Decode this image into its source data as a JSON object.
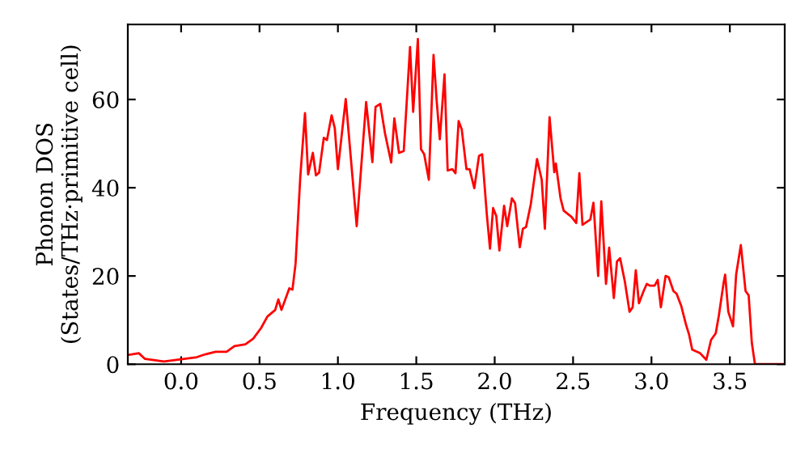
{
  "chart_data": {
    "type": "line",
    "xlabel": "Frequency (THz)",
    "ylabel": "Phonon DOS\n(States/THz·primitive cell)",
    "xlim": [
      -0.34,
      3.85
    ],
    "ylim": [
      0,
      77
    ],
    "xticks": [
      {
        "value": 0,
        "label": "0.0"
      },
      0.5,
      {
        "value": 1,
        "label": "1.0"
      },
      1.5,
      {
        "value": 2,
        "label": "2.0"
      },
      2.5,
      {
        "value": 3,
        "label": "3.0"
      },
      3.5
    ],
    "yticks": [
      0,
      20,
      40,
      60
    ],
    "grid": false,
    "legend": false,
    "series": [
      {
        "color": "#ff0000",
        "x": [
          -0.34,
          -0.27,
          -0.23,
          -0.11,
          0.0,
          0.1,
          0.15,
          0.22,
          0.29,
          0.34,
          0.41,
          0.46,
          0.51,
          0.55,
          0.6,
          0.62,
          0.64,
          0.69,
          0.71,
          0.73,
          0.76,
          0.79,
          0.81,
          0.84,
          0.86,
          0.88,
          0.91,
          0.93,
          0.96,
          0.98,
          1.0,
          1.05,
          1.12,
          1.18,
          1.22,
          1.24,
          1.27,
          1.3,
          1.34,
          1.36,
          1.39,
          1.42,
          1.46,
          1.48,
          1.51,
          1.53,
          1.55,
          1.58,
          1.61,
          1.63,
          1.65,
          1.68,
          1.7,
          1.73,
          1.75,
          1.77,
          1.79,
          1.82,
          1.84,
          1.87,
          1.9,
          1.92,
          1.95,
          1.97,
          1.99,
          2.01,
          2.03,
          2.06,
          2.08,
          2.11,
          2.13,
          2.16,
          2.18,
          2.2,
          2.23,
          2.27,
          2.3,
          2.32,
          2.35,
          2.38,
          2.39,
          2.42,
          2.44,
          2.49,
          2.52,
          2.54,
          2.56,
          2.61,
          2.63,
          2.66,
          2.68,
          2.71,
          2.73,
          2.76,
          2.78,
          2.8,
          2.83,
          2.86,
          2.88,
          2.9,
          2.92,
          2.95,
          2.97,
          2.99,
          3.02,
          3.04,
          3.06,
          3.09,
          3.11,
          3.14,
          3.16,
          3.19,
          3.22,
          3.24,
          3.26,
          3.31,
          3.35,
          3.38,
          3.41,
          3.43,
          3.46,
          3.47,
          3.49,
          3.52,
          3.54,
          3.57,
          3.6,
          3.62,
          3.64,
          3.66,
          3.85
        ],
        "values": [
          2.1,
          2.5,
          1.2,
          0.6,
          1.1,
          1.6,
          2.2,
          2.8,
          2.8,
          4.1,
          4.5,
          5.8,
          8.2,
          10.8,
          12.3,
          14.7,
          12.3,
          17.2,
          16.9,
          22.8,
          42.4,
          56.9,
          43.0,
          47.9,
          42.8,
          43.4,
          51.3,
          50.8,
          56.4,
          53.5,
          44.2,
          60.1,
          31.3,
          59.4,
          45.8,
          58.3,
          59.0,
          52.4,
          45.7,
          55.7,
          47.9,
          48.3,
          71.9,
          57.2,
          73.7,
          48.7,
          47.6,
          41.8,
          70.1,
          59.7,
          51.0,
          65.7,
          43.9,
          44.2,
          43.3,
          55.1,
          53.2,
          44.2,
          44.2,
          39.9,
          47.2,
          47.6,
          33.9,
          26.2,
          35.4,
          33.6,
          25.8,
          35.9,
          31.3,
          37.6,
          36.5,
          26.5,
          30.7,
          31.1,
          36.2,
          46.5,
          41.8,
          30.7,
          56.0,
          43.5,
          45.5,
          37.6,
          34.8,
          33.4,
          32.0,
          43.3,
          31.6,
          32.8,
          36.6,
          20.0,
          36.9,
          18.2,
          26.4,
          15.0,
          23.3,
          24.0,
          18.8,
          11.9,
          12.9,
          21.3,
          13.8,
          16.6,
          18.2,
          17.8,
          17.8,
          19.1,
          12.9,
          20.0,
          19.7,
          16.6,
          16.0,
          13.2,
          9.0,
          6.7,
          3.3,
          2.5,
          1.0,
          5.5,
          7.0,
          11.1,
          18.4,
          20.3,
          11.9,
          8.6,
          20.3,
          27.0,
          16.6,
          15.6,
          4.9,
          0,
          0
        ]
      }
    ]
  }
}
